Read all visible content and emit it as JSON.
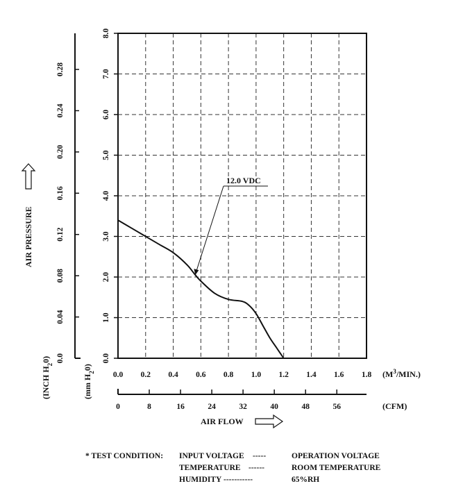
{
  "chart_data": {
    "type": "line",
    "title": "",
    "xlabel": "AIR FLOW",
    "ylabel": "AIR PRESSURE",
    "x_primary": {
      "unit_label": "(M3/MIN.)",
      "ticks": [
        "0.0",
        "0.2",
        "0.4",
        "0.6",
        "0.8",
        "1.0",
        "1.2",
        "1.4",
        "1.6",
        "1.8"
      ],
      "range": [
        0,
        1.8
      ]
    },
    "x_secondary": {
      "unit_label": "(CFM)",
      "ticks": [
        "0",
        "8",
        "16",
        "24",
        "32",
        "40",
        "48",
        "56"
      ],
      "range": [
        0,
        63.6
      ]
    },
    "y_primary": {
      "unit_label": "(mm H2O)",
      "ticks": [
        "0.0",
        "1.0",
        "2.0",
        "3.0",
        "4.0",
        "5.0",
        "6.0",
        "7.0",
        "8.0"
      ],
      "range": [
        0,
        8
      ]
    },
    "y_secondary": {
      "unit_label": "(INCH H2O)",
      "ticks": [
        "0.0",
        "0.04",
        "0.08",
        "0.12",
        "0.16",
        "0.20",
        "0.24",
        "0.28"
      ],
      "range": [
        0,
        0.315
      ]
    },
    "grid": true,
    "series": [
      {
        "name": "12.0 VDC",
        "x": [
          0,
          0.1,
          0.2,
          0.3,
          0.4,
          0.5,
          0.56,
          0.6,
          0.7,
          0.8,
          0.9,
          0.95,
          1.0,
          1.05,
          1.1,
          1.15,
          1.2
        ],
        "y": [
          3.4,
          3.2,
          3.0,
          2.8,
          2.6,
          2.3,
          2.05,
          1.9,
          1.6,
          1.45,
          1.4,
          1.3,
          1.1,
          0.8,
          0.5,
          0.25,
          0.0
        ]
      }
    ],
    "annotations": [
      {
        "text": "12.0 VDC",
        "x": 0.56,
        "y": 2.05
      }
    ]
  },
  "axis_titles": {
    "y_inch_unit": "(INCH H",
    "y_inch_sub": "2",
    "y_inch_tail": "0)",
    "y_mm_unit": "(mm H",
    "y_mm_sub": "2",
    "y_mm_tail": "0)",
    "x_m3_unit": "(M",
    "x_m3_sup": "3",
    "x_m3_tail": "/MIN.)",
    "x_cfm_unit": "(CFM)"
  },
  "test_condition": {
    "prefix": "* TEST  CONDITION:",
    "rows": [
      {
        "label": "INPUT VOLTAGE",
        "dashes": "-----",
        "value": "OPERATION  VOLTAGE"
      },
      {
        "label": "TEMPERATURE",
        "dashes": "------",
        "value": "ROOM  TEMPERATURE"
      },
      {
        "label": "HUMIDITY",
        "dashes": "-----------",
        "value": "65%RH"
      }
    ]
  }
}
